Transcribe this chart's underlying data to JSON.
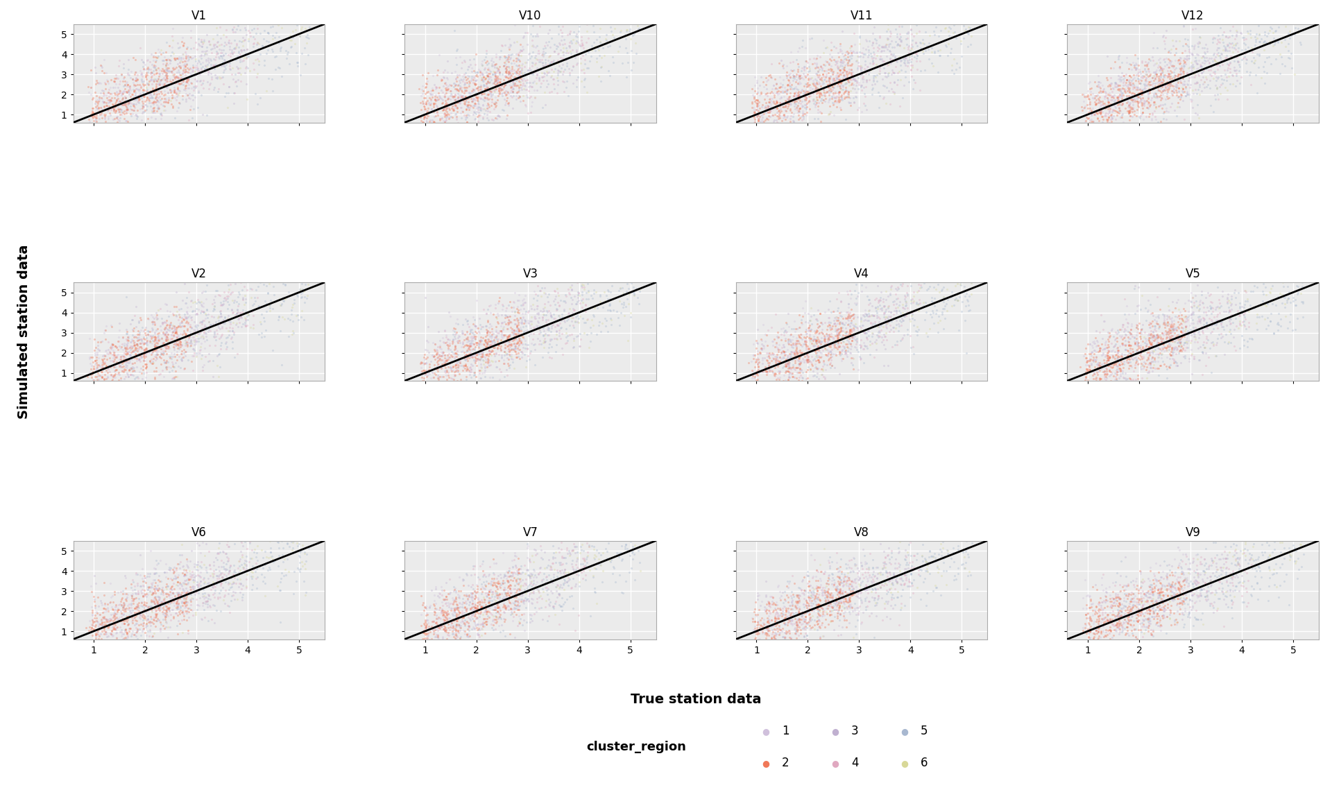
{
  "panels": [
    "V1",
    "V10",
    "V11",
    "V12",
    "V2",
    "V3",
    "V4",
    "V5",
    "V6",
    "V7",
    "V8",
    "V9"
  ],
  "nrows": 3,
  "ncols": 4,
  "xlim": [
    0.6,
    5.5
  ],
  "ylim": [
    0.6,
    5.5
  ],
  "xticks": [
    1,
    2,
    3,
    4,
    5
  ],
  "yticks": [
    1,
    2,
    3,
    4,
    5
  ],
  "xlabel": "True station data",
  "ylabel": "Simulated station data",
  "cluster_colors": {
    "1": "#D4C8E0",
    "2": "#F08868",
    "3": "#C8B8D8",
    "4": "#E8B8C8",
    "5": "#B0C0D8",
    "6": "#E0E0A0"
  },
  "legend_title": "cluster_region",
  "panel_bg": "#EBEBEB",
  "alpha": 0.35,
  "point_size": 5,
  "diag_linewidth": 2.0,
  "grid_color": "#FFFFFF",
  "grid_linewidth": 1.0,
  "title_fontsize": 12,
  "label_fontsize": 14,
  "tick_fontsize": 10,
  "legend_fontsize": 12,
  "legend_title_fontsize": 13
}
